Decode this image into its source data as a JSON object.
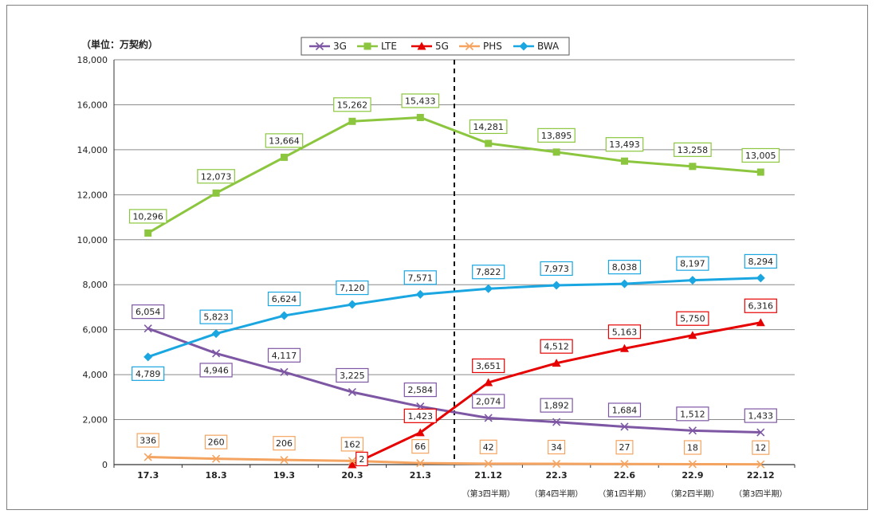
{
  "chart_data": {
    "type": "line",
    "unit_label": "（単位：万契約）",
    "categories": [
      "17.3",
      "18.3",
      "19.3",
      "20.3",
      "21.3",
      "21.12",
      "22.3",
      "22.6",
      "22.9",
      "22.12"
    ],
    "sub_labels": [
      "",
      "",
      "",
      "",
      "",
      "（第3四半期）",
      "（第4四半期）",
      "（第1四半期）",
      "（第2四半期）",
      "（第3四半期）"
    ],
    "ylim": [
      0,
      18000
    ],
    "yticks": [
      "0",
      "2,000",
      "4,000",
      "6,000",
      "8,000",
      "10,000",
      "12,000",
      "14,000",
      "16,000",
      "18,000"
    ],
    "grid": true,
    "legend_position": "top-center",
    "divider_after_index": 4,
    "series": [
      {
        "name": "3G",
        "color": "#7e57a4",
        "marker": "x",
        "values": [
          6054,
          4946,
          4117,
          3225,
          2584,
          2074,
          1892,
          1684,
          1512,
          1433
        ],
        "labels": [
          "6,054",
          "4,946",
          "4,117",
          "3,225",
          "2,584",
          "2,074",
          "1,892",
          "1,684",
          "1,512",
          "1,433"
        ],
        "label_pos": [
          "above",
          "below",
          "above",
          "above",
          "above",
          "above",
          "above",
          "above",
          "above",
          "above"
        ]
      },
      {
        "name": "LTE",
        "color": "#8cc63f",
        "marker": "square",
        "values": [
          10296,
          12073,
          13664,
          15262,
          15433,
          14281,
          13895,
          13493,
          13258,
          13005
        ],
        "labels": [
          "10,296",
          "12,073",
          "13,664",
          "15,262",
          "15,433",
          "14,281",
          "13,895",
          "13,493",
          "13,258",
          "13,005"
        ],
        "label_pos": [
          "above",
          "above",
          "above",
          "above",
          "above",
          "above",
          "above",
          "above",
          "above",
          "above"
        ]
      },
      {
        "name": "5G",
        "color": "#e60000",
        "marker": "triangle",
        "values": [
          null,
          null,
          null,
          2,
          1423,
          3651,
          4512,
          5163,
          5750,
          6316
        ],
        "labels": [
          null,
          null,
          null,
          "2",
          "1,423",
          "3,651",
          "4,512",
          "5,163",
          "5,750",
          "6,316"
        ],
        "label_pos": [
          null,
          null,
          null,
          "right",
          "above",
          "above",
          "above",
          "above",
          "above",
          "above"
        ]
      },
      {
        "name": "PHS",
        "color": "#f4a460",
        "marker": "x",
        "values": [
          336,
          260,
          206,
          162,
          66,
          42,
          34,
          27,
          18,
          12
        ],
        "labels": [
          "336",
          "260",
          "206",
          "162",
          "66",
          "42",
          "34",
          "27",
          "18",
          "12"
        ],
        "label_pos": [
          "above",
          "above",
          "above",
          "above",
          "above",
          "above",
          "above",
          "above",
          "above",
          "above"
        ]
      },
      {
        "name": "BWA",
        "color": "#1aa6e0",
        "marker": "diamond",
        "values": [
          4789,
          5823,
          6624,
          7120,
          7571,
          7822,
          7973,
          8038,
          8197,
          8294
        ],
        "labels": [
          "4,789",
          "5,823",
          "6,624",
          "7,120",
          "7,571",
          "7,822",
          "7,973",
          "8,038",
          "8,197",
          "8,294"
        ],
        "label_pos": [
          "below",
          "above",
          "above",
          "above",
          "above",
          "above",
          "above",
          "above",
          "above",
          "above"
        ]
      }
    ]
  }
}
